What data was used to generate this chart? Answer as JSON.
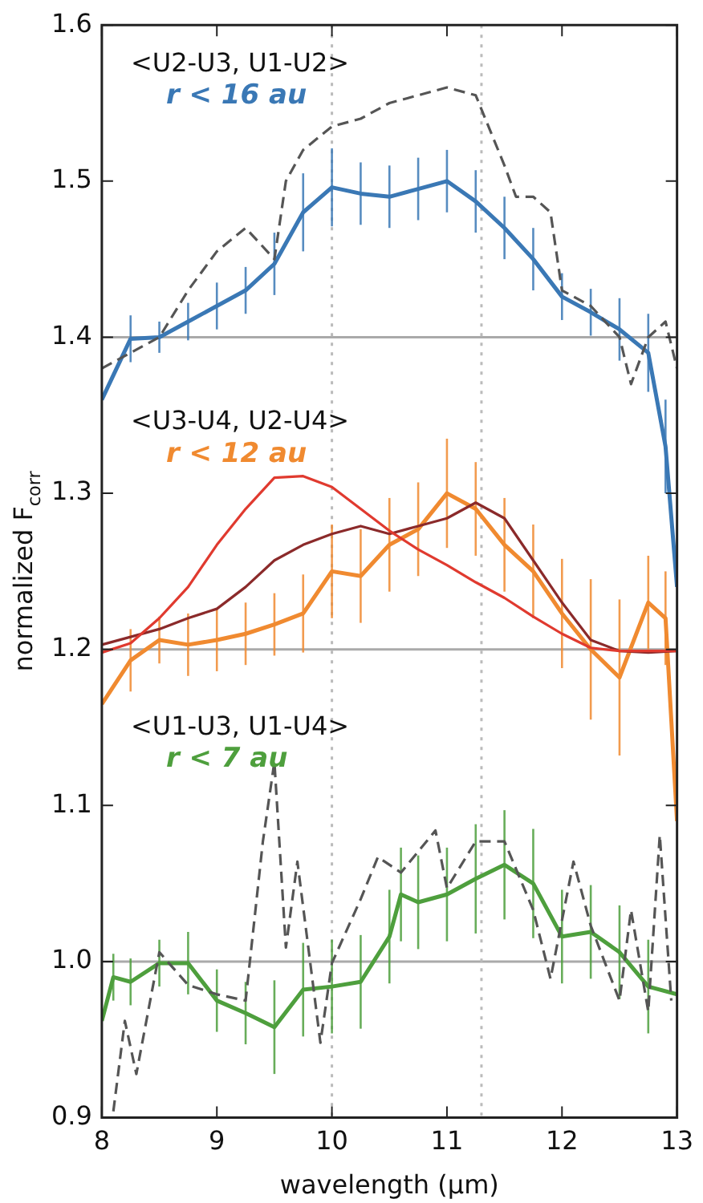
{
  "chart_data": {
    "type": "line",
    "xlabel": "wavelength (μm)",
    "ylabel": "normalized F$_{corr}$",
    "xlim": [
      8,
      13
    ],
    "ylim": [
      0.9,
      1.6
    ],
    "xticks": [
      8,
      9,
      10,
      11,
      12,
      13
    ],
    "yticks": [
      {
        "value": 0.9,
        "label": "0.9"
      },
      {
        "value": 1.0,
        "label": "1.0"
      },
      {
        "value": 1.1,
        "label": "1.1"
      },
      {
        "value": 1.2,
        "label": "1.2"
      },
      {
        "value": 1.3,
        "label": "1.3"
      },
      {
        "value": 1.4,
        "label": "1.4"
      },
      {
        "value": 1.5,
        "label": "1.5"
      },
      {
        "value": 1.6,
        "label": "1.6"
      }
    ],
    "grid": false,
    "legend": false,
    "marker": "none",
    "annotations": [
      "<U2-U3, U1-U2>",
      "<U3-U4, U2-U4>",
      "<U1-U3, U1-U4>"
    ],
    "ref_lines": [
      {
        "axis": "y",
        "value": 1.4,
        "color": "#aaaaaa",
        "line_style": "solid"
      },
      {
        "axis": "y",
        "value": 1.2,
        "color": "#aaaaaa",
        "line_style": "solid"
      },
      {
        "axis": "y",
        "value": 1.0,
        "color": "#aaaaaa",
        "line_style": "solid"
      },
      {
        "axis": "x",
        "value": 10,
        "color": "#bbbbbb",
        "line_style": "dotted"
      },
      {
        "axis": "x",
        "value": 11.3,
        "color": "#bbbbbb",
        "line_style": "dotted"
      }
    ],
    "series": [
      {
        "color": "#555555",
        "line_style": "dashed",
        "x": [
          8.0,
          8.25,
          8.5,
          8.75,
          9.0,
          9.25,
          9.5,
          9.6,
          9.75,
          10.0,
          10.25,
          10.5,
          10.75,
          11.0,
          11.25,
          11.5,
          11.6,
          11.75,
          11.9,
          12.0,
          12.25,
          12.5,
          12.6,
          12.75,
          12.9,
          13.0
        ],
        "values": [
          1.38,
          1.39,
          1.4,
          1.43,
          1.455,
          1.47,
          1.45,
          1.5,
          1.52,
          1.535,
          1.54,
          1.55,
          1.555,
          1.56,
          1.555,
          1.51,
          1.49,
          1.49,
          1.48,
          1.43,
          1.42,
          1.4,
          1.37,
          1.4,
          1.41,
          1.38
        ]
      },
      {
        "name": "r < 16 au",
        "color": "#3a78b5",
        "line_style": "solid",
        "x": [
          8.0,
          8.25,
          8.5,
          8.75,
          9.0,
          9.25,
          9.5,
          9.75,
          10.0,
          10.25,
          10.5,
          10.75,
          11.0,
          11.25,
          11.5,
          11.75,
          12.0,
          12.25,
          12.5,
          12.75,
          12.9,
          13.0
        ],
        "values": [
          1.36,
          1.399,
          1.4,
          1.41,
          1.42,
          1.43,
          1.447,
          1.48,
          1.496,
          1.492,
          1.49,
          1.495,
          1.5,
          1.487,
          1.47,
          1.45,
          1.426,
          1.416,
          1.405,
          1.39,
          1.33,
          1.24
        ],
        "errors": [
          null,
          0.015,
          0.01,
          0.012,
          0.015,
          0.015,
          0.02,
          0.025,
          0.025,
          0.02,
          0.02,
          0.02,
          0.02,
          0.02,
          0.02,
          0.02,
          0.015,
          0.015,
          0.02,
          0.025,
          0.03,
          null
        ]
      },
      {
        "color": "#e03a2f",
        "line_style": "solid",
        "x": [
          8.0,
          8.25,
          8.5,
          8.75,
          9.0,
          9.25,
          9.5,
          9.75,
          10.0,
          10.25,
          10.5,
          10.75,
          11.0,
          11.25,
          11.5,
          11.75,
          12.0,
          12.25,
          12.5,
          12.75,
          13.0
        ],
        "values": [
          1.198,
          1.204,
          1.22,
          1.24,
          1.267,
          1.29,
          1.31,
          1.311,
          1.304,
          1.29,
          1.276,
          1.264,
          1.254,
          1.243,
          1.233,
          1.221,
          1.21,
          1.201,
          1.199,
          1.199,
          1.199
        ]
      },
      {
        "color": "#8b2a2a",
        "line_style": "solid",
        "x": [
          8.0,
          8.25,
          8.5,
          8.75,
          9.0,
          9.25,
          9.5,
          9.75,
          10.0,
          10.25,
          10.5,
          10.75,
          11.0,
          11.25,
          11.5,
          11.75,
          12.0,
          12.25,
          12.5,
          12.75,
          13.0
        ],
        "values": [
          1.203,
          1.208,
          1.213,
          1.22,
          1.226,
          1.24,
          1.257,
          1.267,
          1.274,
          1.279,
          1.274,
          1.279,
          1.284,
          1.294,
          1.284,
          1.257,
          1.23,
          1.206,
          1.199,
          1.198,
          1.199
        ]
      },
      {
        "name": "r < 12 au",
        "color": "#f08a30",
        "line_style": "solid",
        "x": [
          8.0,
          8.25,
          8.5,
          8.75,
          9.0,
          9.25,
          9.5,
          9.75,
          10.0,
          10.25,
          10.5,
          10.75,
          11.0,
          11.25,
          11.5,
          11.75,
          12.0,
          12.25,
          12.5,
          12.75,
          12.9,
          13.0
        ],
        "values": [
          1.165,
          1.193,
          1.206,
          1.203,
          1.206,
          1.21,
          1.216,
          1.223,
          1.25,
          1.247,
          1.267,
          1.277,
          1.3,
          1.29,
          1.267,
          1.25,
          1.223,
          1.2,
          1.182,
          1.23,
          1.22,
          1.09
        ],
        "errors": [
          null,
          0.02,
          0.015,
          0.02,
          0.02,
          0.02,
          0.02,
          0.025,
          0.03,
          0.03,
          0.03,
          0.03,
          0.035,
          0.03,
          0.03,
          0.03,
          0.035,
          0.045,
          0.05,
          0.03,
          0.03,
          null
        ]
      },
      {
        "color": "#555555",
        "line_style": "dashed",
        "x": [
          8.1,
          8.2,
          8.3,
          8.5,
          8.75,
          9.0,
          9.25,
          9.4,
          9.5,
          9.6,
          9.7,
          9.9,
          10.0,
          10.25,
          10.4,
          10.6,
          10.9,
          11.0,
          11.25,
          11.5,
          11.75,
          11.9,
          12.1,
          12.25,
          12.5,
          12.6,
          12.75,
          12.85,
          12.95
        ],
        "values": [
          0.904,
          0.962,
          0.928,
          1.006,
          0.985,
          0.979,
          0.975,
          1.077,
          1.128,
          1.009,
          1.064,
          0.948,
          0.999,
          1.04,
          1.067,
          1.057,
          1.084,
          1.047,
          1.077,
          1.077,
          1.033,
          0.989,
          1.064,
          1.023,
          0.975,
          1.033,
          0.968,
          1.081,
          0.975
        ]
      },
      {
        "name": "r < 7 au",
        "color": "#4e9f3d",
        "line_style": "solid",
        "x": [
          8.0,
          8.1,
          8.25,
          8.5,
          8.75,
          9.0,
          9.25,
          9.5,
          9.75,
          10.0,
          10.25,
          10.5,
          10.6,
          10.75,
          11.0,
          11.25,
          11.5,
          11.75,
          12.0,
          12.25,
          12.5,
          12.75,
          13.0
        ],
        "values": [
          0.962,
          0.99,
          0.987,
          0.999,
          0.999,
          0.975,
          0.967,
          0.958,
          0.982,
          0.984,
          0.987,
          1.016,
          1.043,
          1.038,
          1.043,
          1.053,
          1.062,
          1.05,
          1.016,
          1.019,
          1.006,
          0.984,
          0.979
        ],
        "errors": [
          null,
          0.015,
          0.015,
          0.015,
          0.02,
          0.02,
          0.02,
          0.03,
          0.03,
          0.03,
          0.03,
          0.03,
          0.03,
          0.03,
          0.03,
          0.035,
          0.035,
          0.035,
          0.03,
          0.03,
          0.03,
          0.03,
          null
        ]
      }
    ]
  }
}
